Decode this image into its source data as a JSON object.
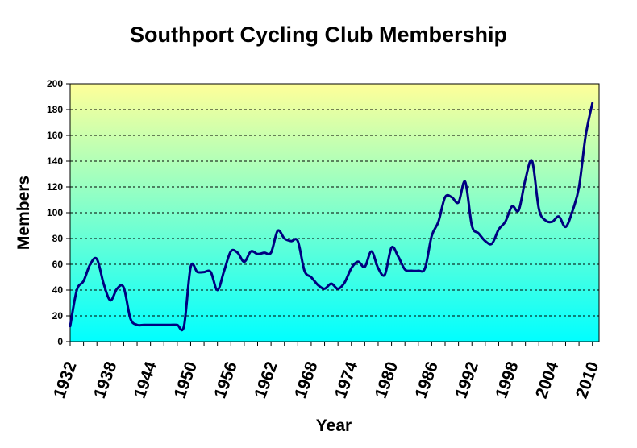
{
  "chart_data": {
    "type": "line",
    "title": "Southport Cycling Club Membership",
    "xlabel": "Year",
    "ylabel": "Members",
    "xlim": [
      1932,
      2011
    ],
    "ylim": [
      0,
      200
    ],
    "y_ticks": [
      0,
      20,
      40,
      60,
      80,
      100,
      120,
      140,
      160,
      180,
      200
    ],
    "x_tick_labels": [
      "1932",
      "1938",
      "1944",
      "1950",
      "1956",
      "1962",
      "1968",
      "1974",
      "1980",
      "1986",
      "1992",
      "1998",
      "2004",
      "2010"
    ],
    "grid": "horizontal dashed",
    "series": [
      {
        "color": "#000080",
        "x": [
          1932,
          1933,
          1934,
          1935,
          1936,
          1937,
          1938,
          1939,
          1940,
          1941,
          1942,
          1943,
          1944,
          1945,
          1946,
          1947,
          1948,
          1949,
          1950,
          1951,
          1952,
          1953,
          1954,
          1955,
          1956,
          1957,
          1958,
          1959,
          1960,
          1961,
          1962,
          1963,
          1964,
          1965,
          1966,
          1967,
          1968,
          1969,
          1970,
          1971,
          1972,
          1973,
          1974,
          1975,
          1976,
          1977,
          1978,
          1979,
          1980,
          1981,
          1982,
          1983,
          1984,
          1985,
          1986,
          1987,
          1988,
          1989,
          1990,
          1991,
          1992,
          1993,
          1994,
          1995,
          1996,
          1997,
          1998,
          1999,
          2000,
          2001,
          2002,
          2003,
          2004,
          2005,
          2006,
          2007,
          2008,
          2009,
          2010
        ],
        "y": [
          12,
          40,
          47,
          60,
          64,
          45,
          32,
          41,
          42,
          18,
          13,
          13,
          13,
          13,
          13,
          13,
          13,
          12,
          58,
          54,
          54,
          54,
          40,
          55,
          70,
          69,
          62,
          70,
          68,
          69,
          69,
          86,
          80,
          78,
          78,
          55,
          50,
          44,
          41,
          45,
          41,
          46,
          57,
          62,
          58,
          70,
          57,
          52,
          73,
          66,
          56,
          55,
          55,
          57,
          82,
          93,
          112,
          112,
          108,
          124,
          90,
          84,
          78,
          76,
          87,
          93,
          105,
          102,
          126,
          140,
          103,
          94,
          93,
          97,
          89,
          101,
          120,
          160,
          185
        ]
      }
    ]
  }
}
